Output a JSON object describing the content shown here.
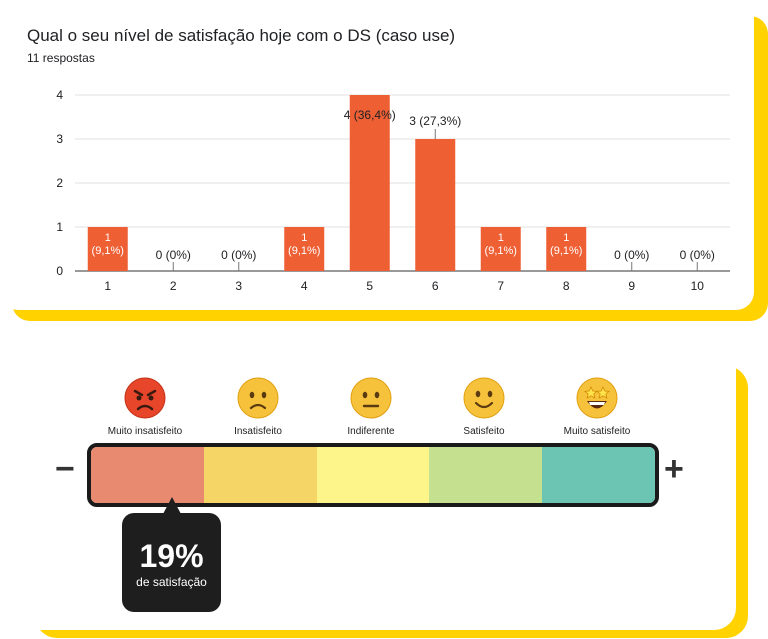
{
  "survey": {
    "title": "Qual o seu nível de satisfação hoje com o DS (caso use)",
    "responses": "11 respostas"
  },
  "colors": {
    "bar": "#ee5f34",
    "brand_yellow": "#ffd200",
    "grid": "#e0e0e0",
    "axis": "#5f6368"
  },
  "chart_data": {
    "type": "bar",
    "categories": [
      "1",
      "2",
      "3",
      "4",
      "5",
      "6",
      "7",
      "8",
      "9",
      "10"
    ],
    "values": [
      1,
      0,
      0,
      1,
      4,
      3,
      1,
      1,
      0,
      0
    ],
    "data_labels": [
      "1\n(9,1%)",
      "0 (0%)",
      "0 (0%)",
      "1\n(9,1%)",
      "4 (36,4%)",
      "3 (27,3%)",
      "1\n(9,1%)",
      "1\n(9,1%)",
      "0 (0%)",
      "0 (0%)"
    ],
    "yticks": [
      "0",
      "1",
      "2",
      "3",
      "4"
    ],
    "ylim": [
      0,
      4
    ],
    "grid": true,
    "title": "Qual o seu nível de satisfação hoje com o DS (caso use)",
    "xlabel": "",
    "ylabel": ""
  },
  "scale": {
    "emojis": [
      {
        "label": "Muito insatisfeito",
        "icon": "angry-face-icon",
        "color": "#e8462b"
      },
      {
        "label": "Insatisfeito",
        "icon": "frowning-face-icon",
        "color": "#f7c23b"
      },
      {
        "label": "Indiferente",
        "icon": "neutral-face-icon",
        "color": "#f7c23b"
      },
      {
        "label": "Satisfeito",
        "icon": "smiling-face-icon",
        "color": "#f7c23b"
      },
      {
        "label": "Muito satisfeito",
        "icon": "star-struck-face-icon",
        "color": "#f7c23b"
      }
    ],
    "segments": [
      "#e88a70",
      "#f4d565",
      "#f4d565",
      "#fef58a",
      "#fef58a",
      "#c5e08f",
      "#c5e08f",
      "#6cc4b3",
      "#6cc4b3"
    ],
    "minus": "−",
    "plus": "+",
    "satisfaction_percent": 19,
    "result_value": "19%",
    "result_label": "de satisfação"
  }
}
